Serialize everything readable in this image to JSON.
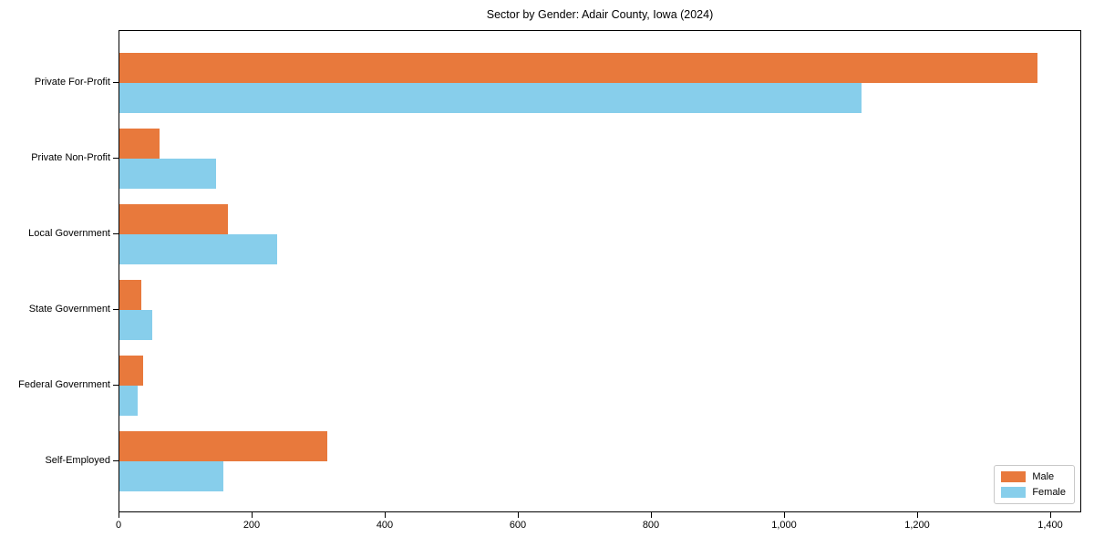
{
  "chart_data": {
    "type": "bar",
    "orientation": "horizontal",
    "title": "Sector by Gender: Adair County, Iowa (2024)",
    "categories": [
      "Private For-Profit",
      "Private Non-Profit",
      "Local Government",
      "State Government",
      "Federal Government",
      "Self-Employed"
    ],
    "series": [
      {
        "name": "Male",
        "color": "#E8793C",
        "values": [
          1380,
          60,
          163,
          33,
          35,
          312
        ]
      },
      {
        "name": "Female",
        "color": "#87CEEB",
        "values": [
          1115,
          145,
          237,
          49,
          27,
          156
        ]
      }
    ],
    "xlabel": "",
    "ylabel": "",
    "xlim": [
      0,
      1447
    ],
    "xticks": [
      0,
      200,
      400,
      600,
      800,
      1000,
      1200,
      1400
    ],
    "xtick_labels": [
      "0",
      "200",
      "400",
      "600",
      "800",
      "1,000",
      "1,200",
      "1,400"
    ],
    "grid": false,
    "legend": {
      "position": "lower-right",
      "entries": [
        "Male",
        "Female"
      ]
    },
    "colors": {
      "male": "#E8793C",
      "female": "#87CEEB",
      "spine": "#000000",
      "background": "#ffffff"
    }
  }
}
